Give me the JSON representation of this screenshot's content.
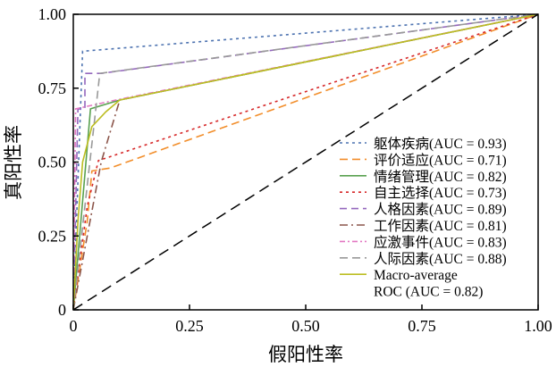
{
  "chart_data": {
    "type": "line",
    "title": "",
    "xlabel": "假阳性率",
    "ylabel": "真阳性率",
    "xlim": [
      0,
      1
    ],
    "ylim": [
      0,
      1
    ],
    "xticks": [
      "0",
      "0.25",
      "0.50",
      "0.75",
      "1.00"
    ],
    "yticks": [
      "0",
      "0.25",
      "0.50",
      "0.75",
      "1.00"
    ],
    "legend_position": "bottom-right",
    "series": [
      {
        "name": "躯体疾病(AUC = 0.93)",
        "color": "#4c72b0",
        "dash": "3,4",
        "points": [
          [
            0,
            0
          ],
          [
            0.02,
            0.875
          ],
          [
            1,
            1
          ]
        ]
      },
      {
        "name": "评价适应(AUC = 0.71)",
        "color": "#f28e2b",
        "dash": "9,5",
        "points": [
          [
            0,
            0
          ],
          [
            0.03,
            0.3
          ],
          [
            0.04,
            0.47
          ],
          [
            0.08,
            0.48
          ],
          [
            1,
            1
          ]
        ]
      },
      {
        "name": "情绪管理(AUC = 0.82)",
        "color": "#59a14f",
        "dash": "",
        "points": [
          [
            0,
            0
          ],
          [
            0.037,
            0.68
          ],
          [
            0.1,
            0.71
          ],
          [
            1,
            1
          ]
        ]
      },
      {
        "name": "自主选择(AUC = 0.73)",
        "color": "#d62728",
        "dash": "3,4",
        "points": [
          [
            0,
            0
          ],
          [
            0.03,
            0.35
          ],
          [
            0.054,
            0.505
          ],
          [
            1,
            1
          ]
        ]
      },
      {
        "name": "人格因素(AUC = 0.89)",
        "color": "#9467bd",
        "dash": "8,5",
        "points": [
          [
            0,
            0
          ],
          [
            0.01,
            0.68
          ],
          [
            0.025,
            0.68
          ],
          [
            0.025,
            0.8
          ],
          [
            0.06,
            0.8
          ],
          [
            1,
            1
          ]
        ]
      },
      {
        "name": "工作因素(AUC = 0.81)",
        "color": "#8c564b",
        "dash": "9,4,2,4",
        "points": [
          [
            0,
            0
          ],
          [
            0.06,
            0.5
          ],
          [
            0.1,
            0.71
          ],
          [
            1,
            1
          ]
        ]
      },
      {
        "name": "应激事件(AUC = 0.83)",
        "color": "#e377c2",
        "dash": "6,3,2,3",
        "points": [
          [
            0,
            0
          ],
          [
            0.005,
            0.68
          ],
          [
            0.092,
            0.71
          ],
          [
            1,
            1
          ]
        ]
      },
      {
        "name": "人际因素(AUC = 0.88)",
        "color": "#999999",
        "dash": "9,5",
        "points": [
          [
            0,
            0
          ],
          [
            0.057,
            0.8
          ],
          [
            1,
            1
          ]
        ]
      },
      {
        "name": "Macro-average ROC (AUC = 0.82)",
        "color": "#bcbd22",
        "dash": "",
        "points": [
          [
            0,
            0
          ],
          [
            0.01,
            0.3
          ],
          [
            0.02,
            0.5
          ],
          [
            0.04,
            0.62
          ],
          [
            0.07,
            0.67
          ],
          [
            0.1,
            0.71
          ],
          [
            1,
            1
          ]
        ]
      }
    ],
    "legend": [
      "躯体疾病(AUC = 0.93)",
      "评价适应(AUC = 0.71)",
      "情绪管理(AUC = 0.82)",
      "自主选择(AUC = 0.73)",
      "人格因素(AUC = 0.89)",
      "工作因素(AUC = 0.81)",
      "应激事件(AUC = 0.83)",
      "人际因素(AUC = 0.88)",
      "Macro-average",
      "ROC (AUC = 0.82)"
    ]
  }
}
